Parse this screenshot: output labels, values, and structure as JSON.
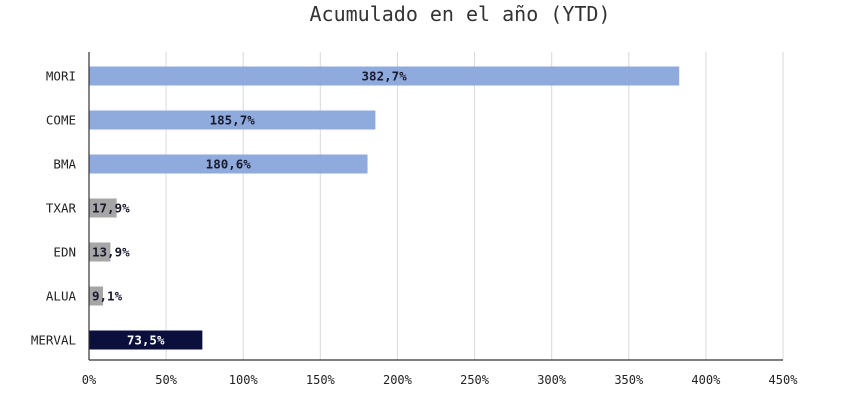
{
  "chart_data": {
    "type": "bar",
    "orientation": "horizontal",
    "title": "Acumulado en el año (YTD)",
    "xlabel": "",
    "ylabel": "",
    "categories": [
      "MORI",
      "COME",
      "BMA",
      "TXAR",
      "EDN",
      "ALUA",
      "MERVAL"
    ],
    "values": [
      382.7,
      185.7,
      180.6,
      17.9,
      13.9,
      9.1,
      73.5
    ],
    "data_labels": [
      "382,7%",
      "185,7%",
      "180,6%",
      "17,9%",
      "13,9%",
      "9,1%",
      "73,5%"
    ],
    "bar_colors": [
      "#8faadc",
      "#8faadc",
      "#8faadc",
      "#a6a6a6",
      "#a6a6a6",
      "#a6a6a6",
      "#0a0f3c"
    ],
    "label_colors": [
      "#1a1a2e",
      "#1a1a2e",
      "#1a1a2e",
      "#1a1a2e",
      "#1a1a2e",
      "#1a1a2e",
      "#ffffff"
    ],
    "xlim": [
      0,
      450
    ],
    "x_ticks": [
      0,
      50,
      100,
      150,
      200,
      250,
      300,
      350,
      400,
      450
    ],
    "x_tick_labels": [
      "0%",
      "50%",
      "100%",
      "150%",
      "200%",
      "250%",
      "300%",
      "350%",
      "400%",
      "450%"
    ],
    "grid": "vertical",
    "gridline_color": "#d9d9d9",
    "legend": "none"
  }
}
